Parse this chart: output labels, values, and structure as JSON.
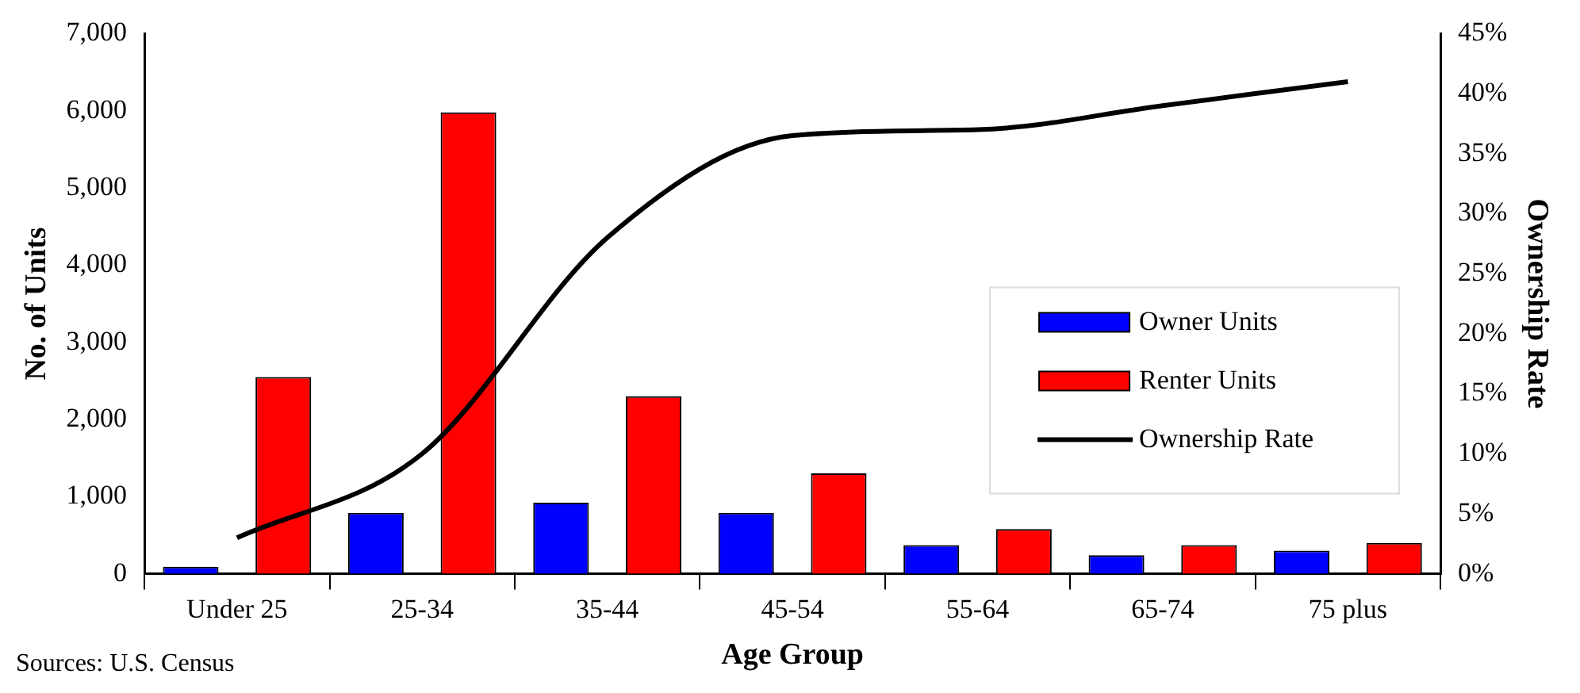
{
  "chart_data": {
    "type": "bar",
    "categories": [
      "Under 25",
      "25-34",
      "35-44",
      "45-54",
      "55-64",
      "65-74",
      "75 plus"
    ],
    "series": [
      {
        "name": "Owner Units",
        "color": "#0000ff",
        "values": [
          90,
          790,
          920,
          790,
          370,
          240,
          300
        ]
      },
      {
        "name": "Renter Units",
        "color": "#ff0000",
        "values": [
          2550,
          5980,
          2300,
          1300,
          580,
          370,
          400
        ]
      },
      {
        "name": "Ownership Rate",
        "type": "line",
        "axis": "y2",
        "color": "#000000",
        "values": [
          3,
          10,
          28,
          36.5,
          37,
          39,
          41
        ]
      }
    ],
    "xlabel": "Age Group",
    "ylabel": "No. of Units",
    "y2label": "Ownership Rate",
    "ylim": [
      0,
      7000
    ],
    "yticks": [
      0,
      {
        "value": 1000,
        "label": "1,000"
      },
      {
        "value": 2000,
        "label": "2,000"
      },
      {
        "value": 3000,
        "label": "3,000"
      },
      {
        "value": 4000,
        "label": "4,000"
      },
      {
        "value": 5000,
        "label": "5,000"
      },
      {
        "value": 6000,
        "label": "6,000"
      },
      {
        "value": 7000,
        "label": "7,000"
      }
    ],
    "y2lim": [
      0,
      45
    ],
    "y2ticks": [
      {
        "value": 0,
        "label": "0%"
      },
      {
        "value": 5,
        "label": "5%"
      },
      {
        "value": 10,
        "label": "10%"
      },
      {
        "value": 15,
        "label": "15%"
      },
      {
        "value": 20,
        "label": "20%"
      },
      {
        "value": 25,
        "label": "25%"
      },
      {
        "value": 30,
        "label": "30%"
      },
      {
        "value": 35,
        "label": "35%"
      },
      {
        "value": 40,
        "label": "40%"
      },
      {
        "value": 45,
        "label": "45%"
      }
    ],
    "legend": "right",
    "marker": "none",
    "annotations": [
      "Sources: U.S. Census"
    ]
  }
}
